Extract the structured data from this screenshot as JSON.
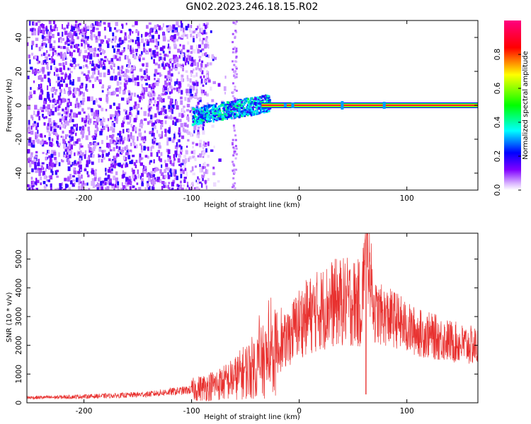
{
  "title": "GN02.2023.246.18.15.R02",
  "chart_data": [
    {
      "type": "heatmap",
      "xlabel": "Height of straight line (km)",
      "ylabel": "Frequency (Hz)",
      "xlim": [
        -253,
        166
      ],
      "ylim": [
        -50,
        50
      ],
      "x_ticks": [
        -200,
        -100,
        0,
        100
      ],
      "x_tick_labels": [
        "-200",
        "-100",
        "0",
        "100"
      ],
      "y_ticks": [
        -40,
        -20,
        0,
        20,
        40
      ],
      "y_tick_labels": [
        "-40",
        "-20",
        "0",
        "20",
        "40"
      ],
      "colorbar": {
        "label": "Normalized spectral amplitude",
        "range": [
          0,
          1
        ],
        "ticks": [
          0.0,
          0.2,
          0.4,
          0.6,
          0.8
        ],
        "tick_labels": [
          "0.0",
          "0.2",
          "0.4",
          "0.6",
          "0.8"
        ],
        "colors": [
          "#ffffff",
          "#8000ff",
          "#0000ff",
          "#00ffff",
          "#00ff00",
          "#ffff00",
          "#ff0000",
          "#ff0080"
        ]
      },
      "regions": [
        {
          "x_range": [
            -253,
            -85
          ],
          "freq_range": [
            -50,
            50
          ],
          "amplitude": 0.1,
          "note": "broadband noise"
        },
        {
          "x_range": [
            -100,
            -30
          ],
          "freq_range": [
            -10,
            5
          ],
          "amplitude": 0.4
        },
        {
          "x_range": [
            -35,
            166
          ],
          "freq_center": 0,
          "amplitude": 0.9
        }
      ],
      "grid": false
    },
    {
      "type": "line",
      "xlabel": "Height of straight line (km)",
      "ylabel": "SNR (10 * v/v)",
      "xlim": [
        -253,
        166
      ],
      "ylim": [
        0,
        5900
      ],
      "x_ticks": [
        -200,
        -100,
        0,
        100
      ],
      "x_tick_labels": [
        "-200",
        "-100",
        "0",
        "100"
      ],
      "y_ticks": [
        0,
        1000,
        2000,
        3000,
        4000,
        5000
      ],
      "y_tick_labels": [
        "0",
        "1000",
        "2000",
        "3000",
        "4000",
        "5000"
      ],
      "color": "#e8302e",
      "series": [
        {
          "x": [
            -253,
            -230,
            -200,
            -170,
            -140,
            -120,
            -100,
            -85,
            -70,
            -60,
            -50,
            -40,
            -30,
            -20,
            -15,
            -10,
            -5,
            0,
            10,
            20,
            30,
            40,
            50,
            55,
            60,
            62,
            70,
            80,
            90,
            100,
            110,
            120,
            130,
            140,
            150,
            166
          ],
          "y": [
            180,
            190,
            220,
            250,
            300,
            380,
            450,
            560,
            700,
            850,
            1100,
            1300,
            1500,
            1800,
            2050,
            2300,
            2550,
            2800,
            3050,
            3250,
            3450,
            3500,
            3500,
            3450,
            3400,
            5850,
            3150,
            3000,
            2900,
            2600,
            2450,
            2350,
            2250,
            2150,
            2050,
            1950
          ]
        }
      ],
      "grid": false
    }
  ]
}
